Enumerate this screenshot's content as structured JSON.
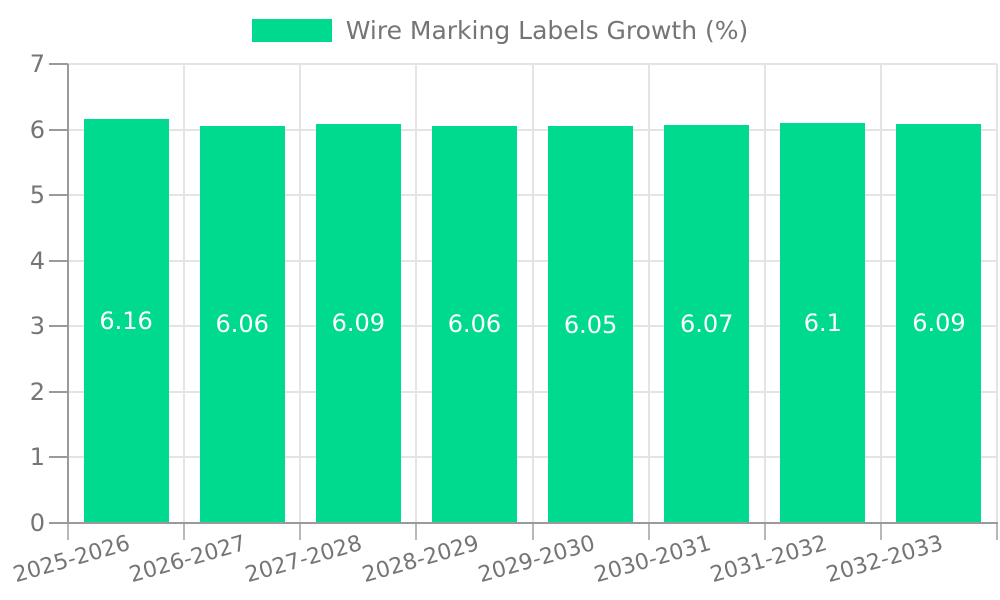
{
  "chart_data": {
    "type": "bar",
    "title": "Wire Marking Labels Growth (%)",
    "categories": [
      "2025-2026",
      "2026-2027",
      "2027-2028",
      "2028-2029",
      "2029-2030",
      "2030-2031",
      "2031-2032",
      "2032-2033"
    ],
    "values": [
      6.16,
      6.06,
      6.09,
      6.06,
      6.05,
      6.07,
      6.1,
      6.09
    ],
    "xlabel": "",
    "ylabel": "",
    "ylim": [
      0,
      7
    ],
    "yticks": [
      0,
      1,
      2,
      3,
      4,
      5,
      6,
      7
    ],
    "grid": true,
    "legend_position": "top",
    "bar_value_labels_visible": true,
    "colors": {
      "bar": "#00DA8E",
      "bar_value_label": "#FFFFFF",
      "axis_text": "#757575",
      "axis_line": "#9A9A9A",
      "gridline": "#E4E4E4",
      "tick": "#B8B8B8",
      "background": "#FFFFFF"
    }
  }
}
